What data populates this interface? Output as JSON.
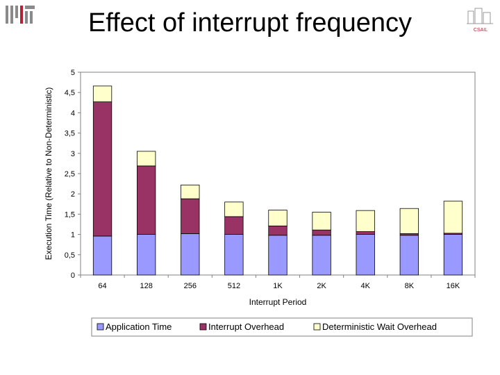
{
  "slide": {
    "title": "Effect of interrupt frequency",
    "csail_label": "CSAIL"
  },
  "colors": {
    "application": "#9999ff",
    "interrupt": "#993366",
    "wait": "#ffffcc",
    "frame": "#808080",
    "bar_edge": "#000000"
  },
  "chart_data": {
    "type": "bar",
    "stacked": true,
    "title": "",
    "xlabel": "Interrupt Period",
    "ylabel": "Execution Time (Relative to Non-Deterministic)",
    "ylim": [
      0,
      5
    ],
    "yticks": [
      0,
      0.5,
      1,
      1.5,
      2,
      2.5,
      3,
      3.5,
      4,
      4.5,
      5
    ],
    "ytick_labels": [
      "0",
      "0,5",
      "1",
      "1,5",
      "2",
      "2,5",
      "3",
      "3,5",
      "4",
      "4,5",
      "5"
    ],
    "categories": [
      "64",
      "128",
      "256",
      "512",
      "1K",
      "2K",
      "4K",
      "8K",
      "16K"
    ],
    "grid": false,
    "legend_position": "bottom",
    "series": [
      {
        "name": "Application Time",
        "color": "#9999ff",
        "values": [
          0.96,
          1.0,
          1.02,
          1.0,
          0.98,
          0.98,
          1.0,
          0.98,
          1.0
        ]
      },
      {
        "name": "Interrupt Overhead",
        "color": "#993366",
        "values": [
          3.31,
          1.69,
          0.86,
          0.44,
          0.23,
          0.13,
          0.07,
          0.04,
          0.03
        ]
      },
      {
        "name": "Deterministic Wait Overhead",
        "color": "#ffffcc",
        "values": [
          0.39,
          0.36,
          0.34,
          0.36,
          0.39,
          0.44,
          0.52,
          0.62,
          0.79
        ]
      }
    ]
  }
}
